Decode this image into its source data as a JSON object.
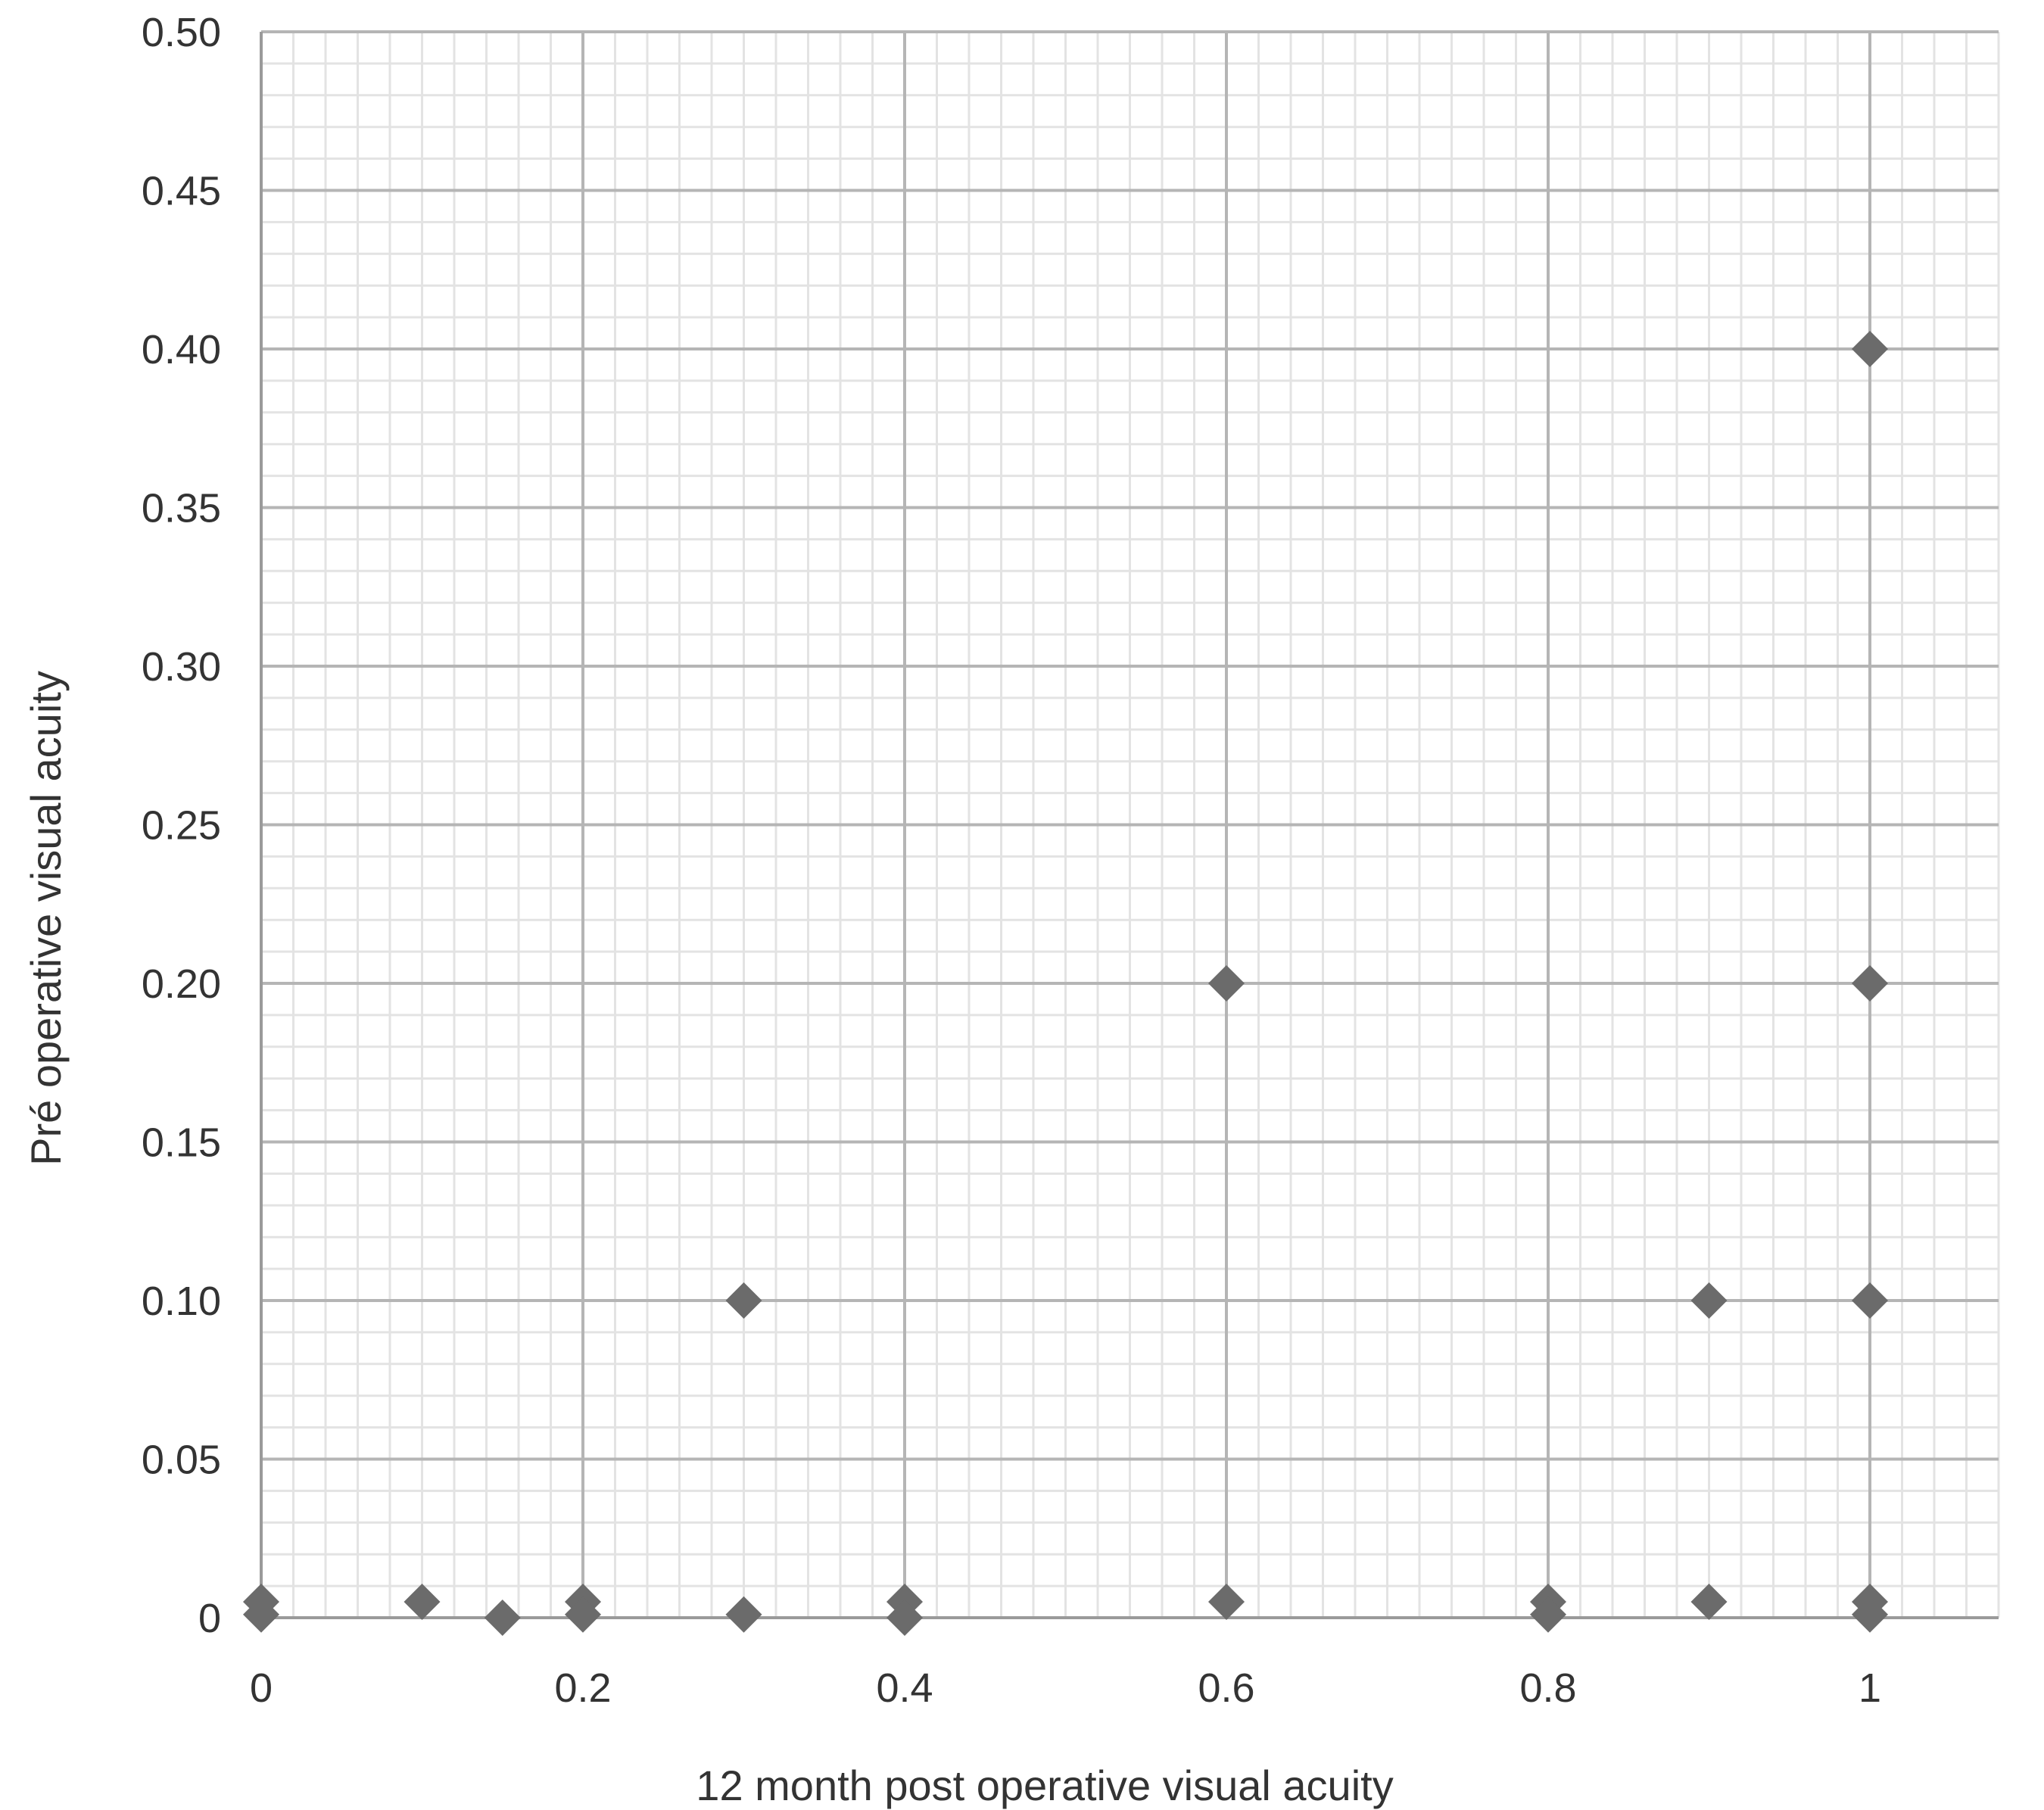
{
  "chart_data": {
    "type": "scatter",
    "title": "",
    "xlabel": "12 month post operative visual acuity",
    "ylabel": "Pré operative visual acuity",
    "xlim": [
      0,
      1.1
    ],
    "ylim": [
      0,
      0.5
    ],
    "x_ticks": [
      0,
      0.2,
      0.4,
      0.6,
      0.8,
      1
    ],
    "x_tick_labels": [
      "0",
      "0.2",
      "0.4",
      "0.6",
      "0.8",
      "1"
    ],
    "y_ticks": [
      0,
      0.05,
      0.1,
      0.15,
      0.2,
      0.25,
      0.3,
      0.35,
      0.4,
      0.45,
      0.5
    ],
    "y_tick_labels": [
      "0",
      "0.05",
      "0.10",
      "0.15",
      "0.20",
      "0.25",
      "0.30",
      "0.35",
      "0.40",
      "0.45",
      "0.50"
    ],
    "grid": true,
    "legend": "none",
    "marker": "diamond",
    "marker_color": "#6b6b6b",
    "series": [
      {
        "points": [
          {
            "x": 0,
            "y": 0.005
          },
          {
            "x": 0,
            "y": 0.001
          },
          {
            "x": 0.1,
            "y": 0.005
          },
          {
            "x": 0.15,
            "y": 0
          },
          {
            "x": 0.2,
            "y": 0.005
          },
          {
            "x": 0.2,
            "y": 0.001
          },
          {
            "x": 0.3,
            "y": 0.1
          },
          {
            "x": 0.3,
            "y": 0.001
          },
          {
            "x": 0.4,
            "y": 0.005
          },
          {
            "x": 0.4,
            "y": 0
          },
          {
            "x": 0.6,
            "y": 0.2
          },
          {
            "x": 0.6,
            "y": 0.005
          },
          {
            "x": 0.8,
            "y": 0.005
          },
          {
            "x": 0.8,
            "y": 0.001
          },
          {
            "x": 0.9,
            "y": 0.1
          },
          {
            "x": 0.9,
            "y": 0.005
          },
          {
            "x": 1,
            "y": 0.4
          },
          {
            "x": 1,
            "y": 0.2
          },
          {
            "x": 1,
            "y": 0.1
          },
          {
            "x": 1,
            "y": 0.005
          },
          {
            "x": 1,
            "y": 0.001
          }
        ]
      }
    ]
  }
}
